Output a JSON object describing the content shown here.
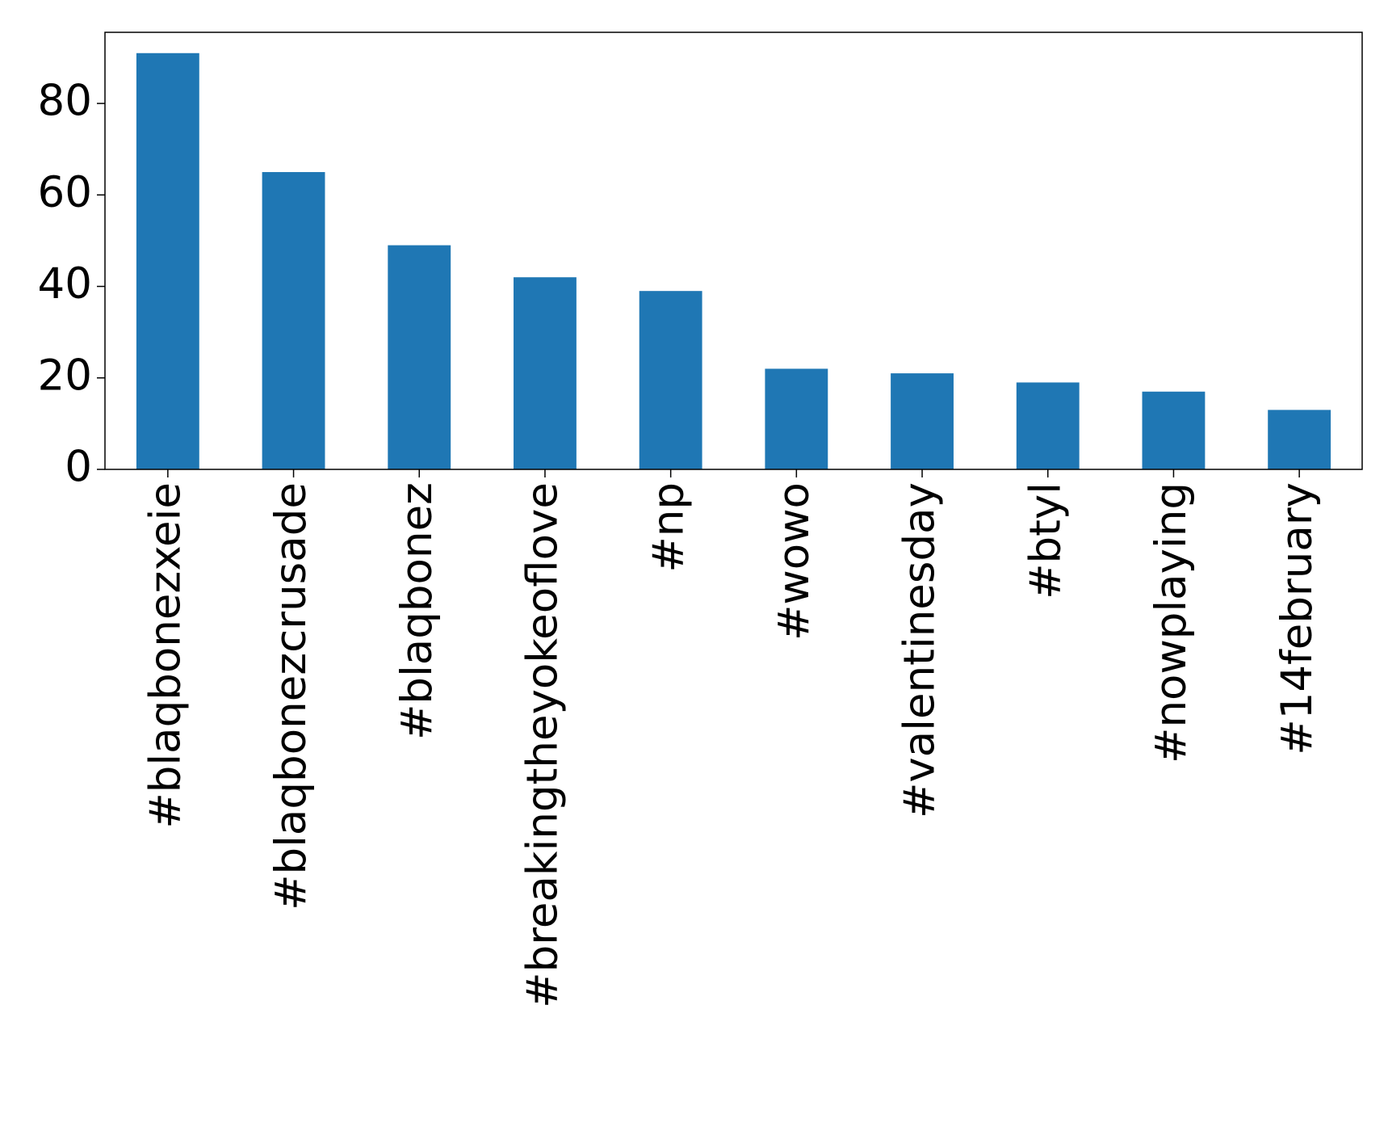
{
  "chart_data": {
    "type": "bar",
    "categories": [
      "#blaqbonezxeie",
      "#blaqbonezcrusade",
      "#blaqbonez",
      "#breakingtheyokeoflove",
      "#np",
      "#wowo",
      "#valentinesday",
      "#btyl",
      "#nowplaying",
      "#14february"
    ],
    "values": [
      91,
      65,
      49,
      42,
      39,
      22,
      21,
      19,
      17,
      13
    ],
    "color": "#1f77b4",
    "ylim": [
      0,
      95.55
    ],
    "yticks": [
      0,
      20,
      40,
      60,
      80
    ],
    "grid": false
  }
}
